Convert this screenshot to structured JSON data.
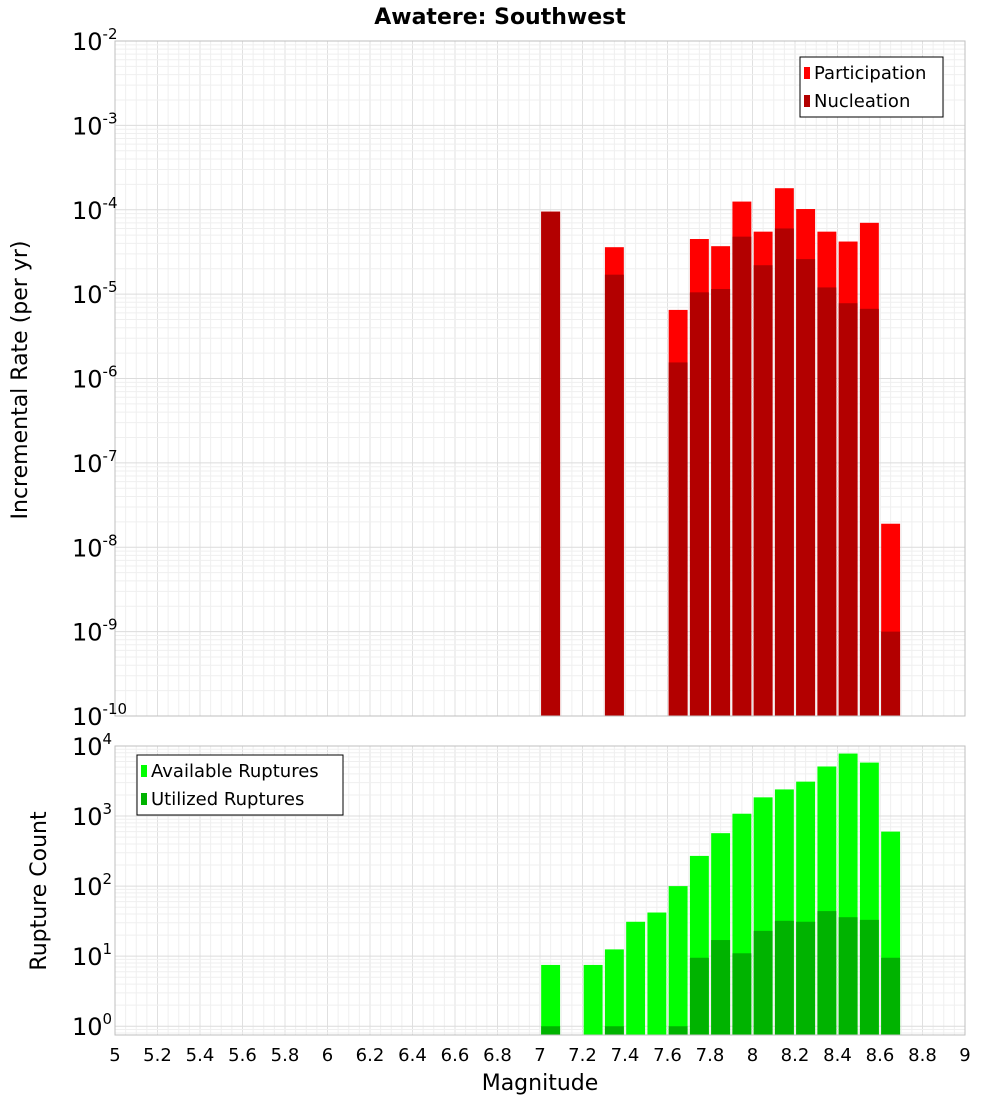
{
  "chart_data": [
    {
      "type": "bar",
      "title": "Awatere: Southwest",
      "xlabel": "",
      "ylabel": "Incremental Rate (per yr)",
      "yscale": "log",
      "ylim": [
        1e-10,
        0.01
      ],
      "xlim": [
        5,
        9
      ],
      "grid": true,
      "legend_position": "top-right",
      "x": [
        7.05,
        7.35,
        7.65,
        7.75,
        7.85,
        7.95,
        8.05,
        8.15,
        8.25,
        8.35,
        8.45,
        8.55,
        8.65
      ],
      "series": [
        {
          "name": "Participation",
          "color": "#ff0000",
          "values": [
            9.5e-05,
            3.6e-05,
            6.5e-06,
            4.5e-05,
            3.7e-05,
            0.000125,
            5.5e-05,
            0.00018,
            0.000102,
            5.5e-05,
            4.2e-05,
            7e-05,
            1.9e-08
          ]
        },
        {
          "name": "Nucleation",
          "color": "#b30000",
          "values": [
            9.5e-05,
            1.7e-05,
            1.55e-06,
            1.05e-05,
            1.15e-05,
            4.8e-05,
            2.2e-05,
            6e-05,
            2.6e-05,
            1.2e-05,
            7.8e-06,
            6.7e-06,
            1e-09
          ]
        }
      ],
      "y_ticks": [
        {
          "base": "10",
          "exp": "-2"
        },
        {
          "base": "10",
          "exp": "-3"
        },
        {
          "base": "10",
          "exp": "-4"
        },
        {
          "base": "10",
          "exp": "-5"
        },
        {
          "base": "10",
          "exp": "-6"
        },
        {
          "base": "10",
          "exp": "-7"
        },
        {
          "base": "10",
          "exp": "-8"
        },
        {
          "base": "10",
          "exp": "-9"
        },
        {
          "base": "10",
          "exp": "-10"
        }
      ]
    },
    {
      "type": "bar",
      "title": "",
      "xlabel": "Magnitude",
      "ylabel": "Rupture Count",
      "yscale": "log",
      "ylim": [
        0.75,
        10000
      ],
      "xlim": [
        5,
        9
      ],
      "grid": true,
      "legend_position": "top-left",
      "x": [
        7.05,
        7.25,
        7.35,
        7.45,
        7.55,
        7.65,
        7.75,
        7.85,
        7.95,
        8.05,
        8.15,
        8.25,
        8.35,
        8.45,
        8.55,
        8.65
      ],
      "series": [
        {
          "name": "Available Ruptures",
          "color": "#00ff00",
          "values": [
            7.5,
            7.5,
            12.5,
            31,
            42,
            100,
            270,
            570,
            1080,
            1850,
            2400,
            3100,
            5100,
            7800,
            5800,
            600
          ]
        },
        {
          "name": "Utilized Ruptures",
          "color": "#00b300",
          "values": [
            1,
            null,
            1,
            null,
            null,
            1,
            9.5,
            17,
            11,
            23,
            32,
            31,
            44,
            36,
            33,
            9.5
          ]
        }
      ],
      "y_ticks": [
        {
          "base": "10",
          "exp": "4"
        },
        {
          "base": "10",
          "exp": "3"
        },
        {
          "base": "10",
          "exp": "2"
        },
        {
          "base": "10",
          "exp": "1"
        },
        {
          "base": "10",
          "exp": "0"
        }
      ],
      "x_ticks": [
        "5",
        "5.2",
        "5.4",
        "5.6",
        "5.8",
        "6",
        "6.2",
        "6.4",
        "6.6",
        "6.8",
        "7",
        "7.2",
        "7.4",
        "7.6",
        "7.8",
        "8",
        "8.2",
        "8.4",
        "8.6",
        "8.8",
        "9"
      ]
    }
  ]
}
